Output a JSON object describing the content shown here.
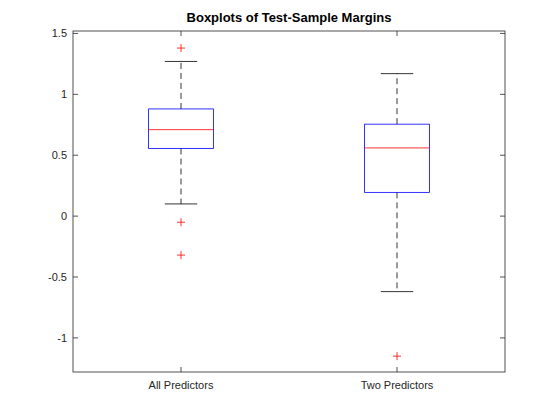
{
  "chart_data": {
    "type": "box",
    "title": "Boxplots of Test-Sample Margins",
    "categories": [
      "All Predictors",
      "Two Predictors"
    ],
    "boxes": [
      {
        "min": 0.1,
        "q1": 0.555,
        "median": 0.71,
        "q3": 0.88,
        "max": 1.27,
        "outliers": [
          1.38,
          -0.05,
          -0.32
        ]
      },
      {
        "min": -0.62,
        "q1": 0.195,
        "median": 0.56,
        "q3": 0.755,
        "max": 1.17,
        "outliers": [
          -1.15
        ]
      }
    ],
    "color": "#0000ff",
    "ylim": [
      -1.28,
      1.52
    ],
    "yticks": [
      -1,
      -0.5,
      0,
      0.5,
      1,
      1.5
    ]
  }
}
